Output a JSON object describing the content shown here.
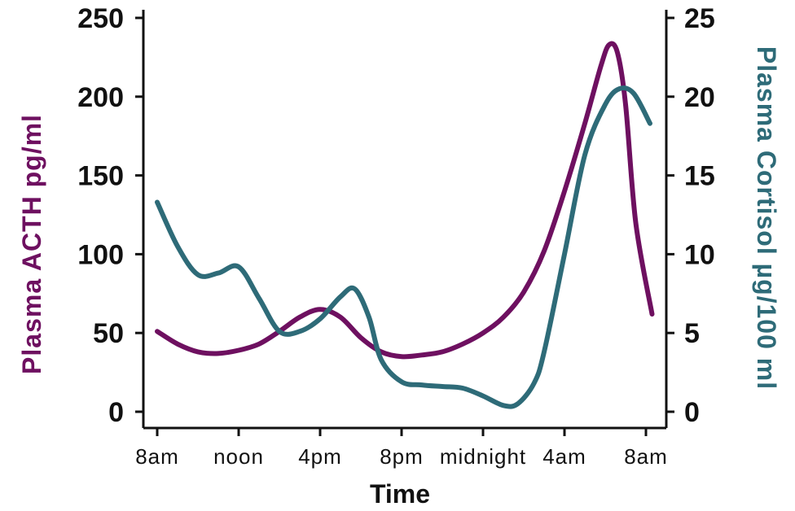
{
  "chart_data": {
    "type": "line",
    "xlabel": "Time",
    "x_categories": [
      "8am",
      "noon",
      "4pm",
      "8pm",
      "midnight",
      "4am",
      "8am"
    ],
    "x_hours": [
      0,
      4,
      8,
      12,
      16,
      20,
      24
    ],
    "y_left": {
      "label": "Plasma ACTH pg/ml",
      "ylim": [
        0,
        250
      ],
      "ticks": [
        0,
        50,
        100,
        150,
        200,
        250
      ],
      "color": "#6e1060"
    },
    "y_right": {
      "label": "Plasma Cortisol µg/100 ml",
      "ylim": [
        0,
        25
      ],
      "ticks": [
        0,
        5,
        10,
        15,
        20,
        25
      ],
      "color": "#2e6b78"
    },
    "grid": false,
    "series": [
      {
        "axis": "left",
        "color": "#6e1060",
        "points": [
          [
            0,
            51
          ],
          [
            1,
            43
          ],
          [
            2,
            38
          ],
          [
            3,
            37
          ],
          [
            4,
            39
          ],
          [
            5,
            43
          ],
          [
            6,
            51
          ],
          [
            7,
            60
          ],
          [
            8,
            65
          ],
          [
            9,
            60
          ],
          [
            10,
            47
          ],
          [
            11,
            38
          ],
          [
            12,
            35
          ],
          [
            13,
            36
          ],
          [
            14,
            38
          ],
          [
            15,
            43
          ],
          [
            16,
            50
          ],
          [
            17,
            60
          ],
          [
            18,
            76
          ],
          [
            19,
            102
          ],
          [
            20,
            140
          ],
          [
            21,
            183
          ],
          [
            21.8,
            220
          ],
          [
            22.2,
            233
          ],
          [
            22.6,
            228
          ],
          [
            23,
            195
          ],
          [
            23.5,
            120
          ],
          [
            24.3,
            62
          ]
        ]
      },
      {
        "axis": "right",
        "color": "#2e6b78",
        "points": [
          [
            0,
            13.3
          ],
          [
            1,
            10.5
          ],
          [
            2,
            8.7
          ],
          [
            3,
            8.8
          ],
          [
            4,
            9.2
          ],
          [
            5,
            7.2
          ],
          [
            6,
            5.1
          ],
          [
            7,
            5.1
          ],
          [
            8,
            5.9
          ],
          [
            9,
            7.3
          ],
          [
            9.7,
            7.8
          ],
          [
            10.4,
            6.0
          ],
          [
            11,
            3.3
          ],
          [
            12,
            1.9
          ],
          [
            13,
            1.7
          ],
          [
            14,
            1.6
          ],
          [
            15,
            1.5
          ],
          [
            16,
            1.0
          ],
          [
            17,
            0.4
          ],
          [
            17.7,
            0.5
          ],
          [
            18.5,
            1.8
          ],
          [
            19,
            3.8
          ],
          [
            20,
            10.0
          ],
          [
            21,
            16.3
          ],
          [
            22,
            19.5
          ],
          [
            22.7,
            20.5
          ],
          [
            23.4,
            20.2
          ],
          [
            24.2,
            18.3
          ]
        ]
      }
    ]
  }
}
